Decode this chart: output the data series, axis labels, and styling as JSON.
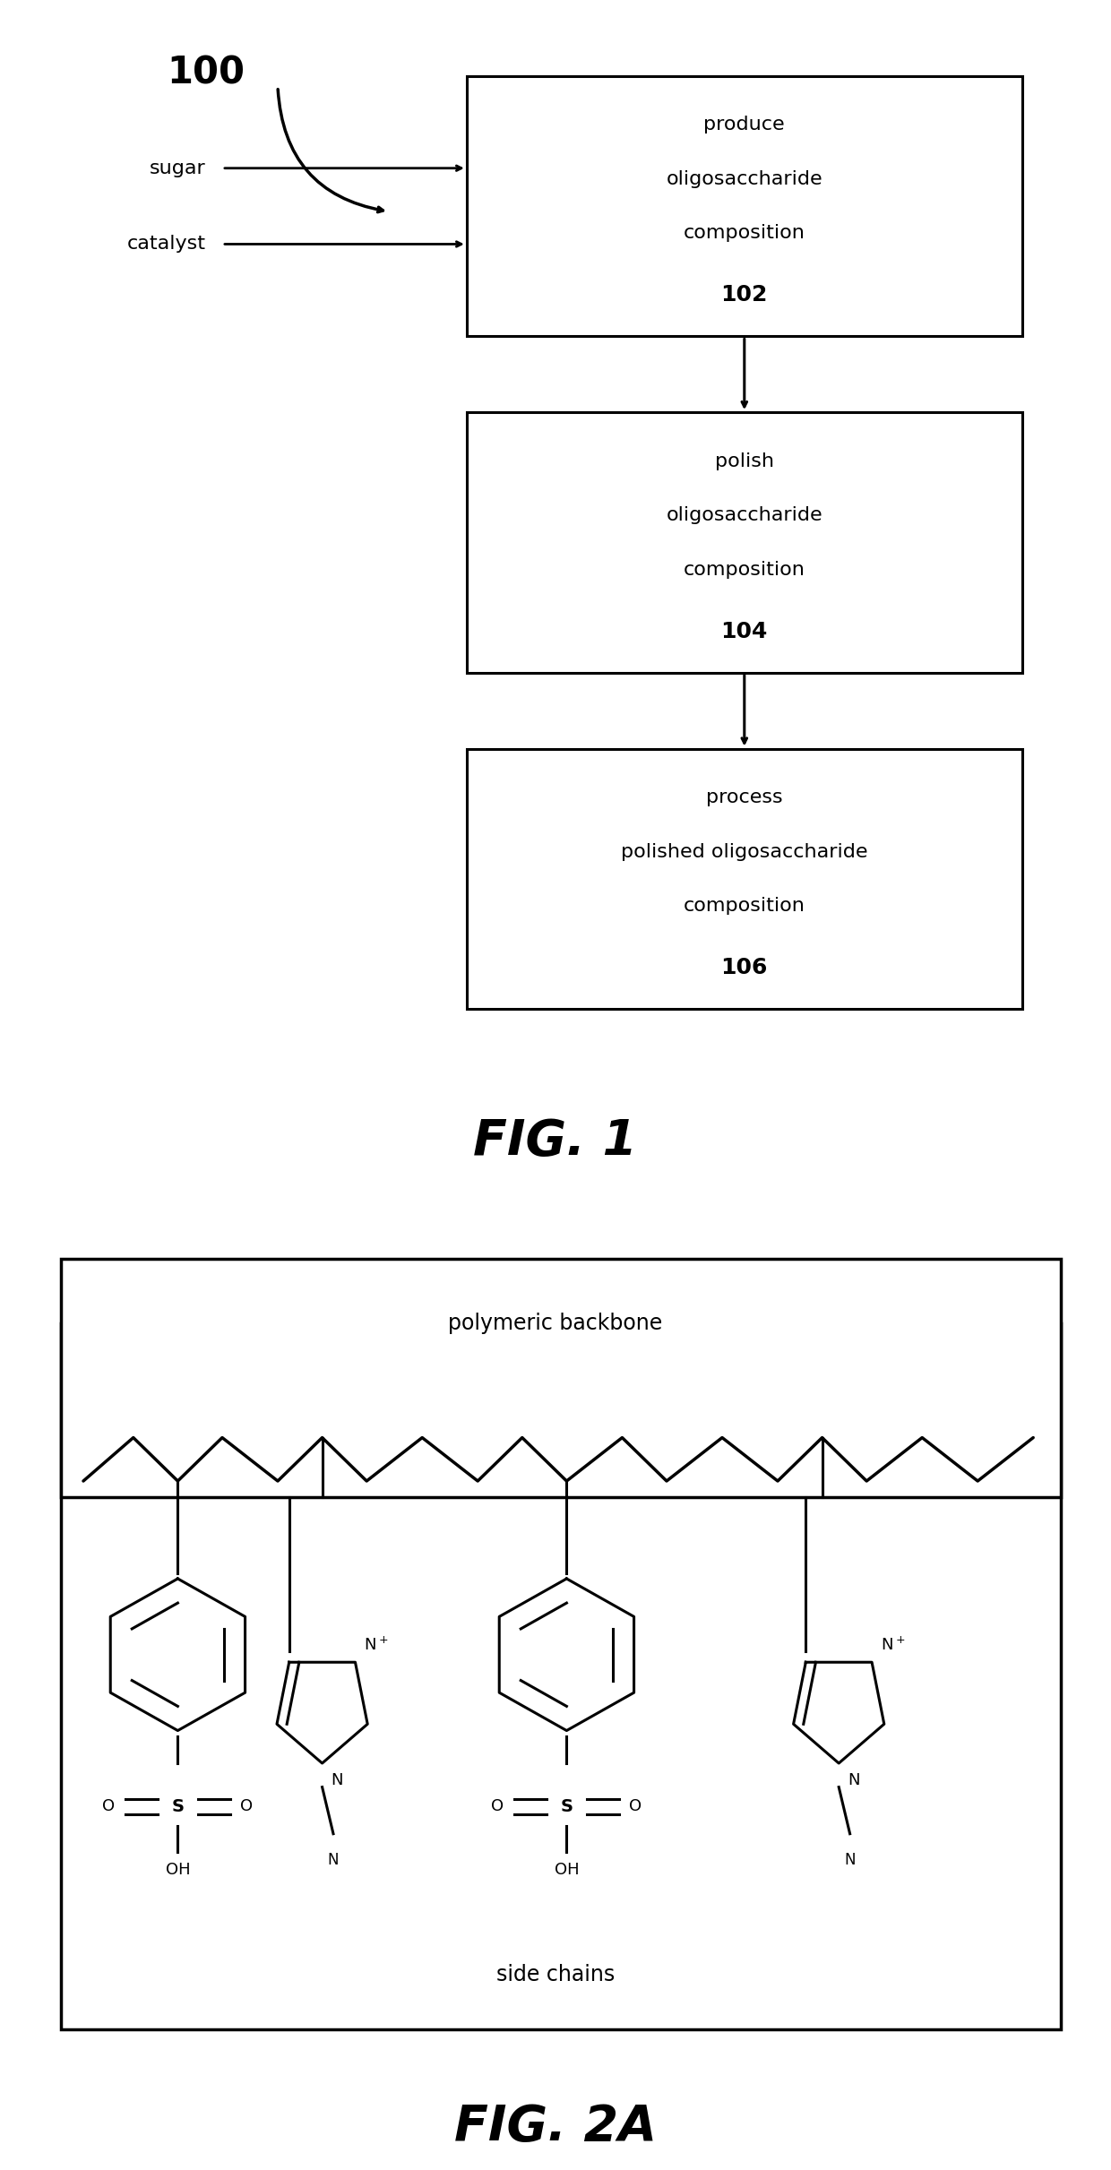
{
  "fig1": {
    "title": "FIG. 1",
    "label_100": "100",
    "box1": {
      "lines": [
        "produce",
        "oligosaccharide",
        "composition",
        "102"
      ]
    },
    "box2": {
      "lines": [
        "polish",
        "oligosaccharide",
        "composition",
        "104"
      ]
    },
    "box3": {
      "lines": [
        "process",
        "polished oligosaccharide",
        "composition",
        "106"
      ]
    },
    "input1": "sugar",
    "input2": "catalyst"
  },
  "fig2a": {
    "title": "FIG. 2A",
    "label_bb": "polymeric backbone",
    "label_sc": "side chains"
  },
  "background": "#ffffff"
}
